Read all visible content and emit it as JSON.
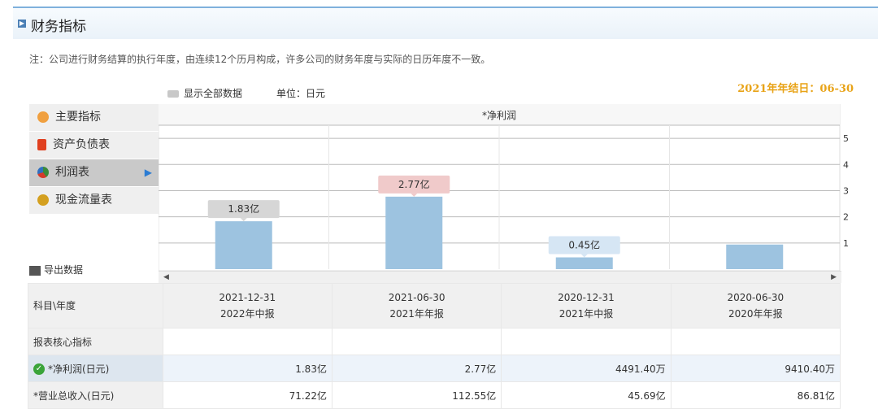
{
  "header": {
    "title": "财务指标"
  },
  "note": "注：公司进行财务结算的执行年度，由连续12个历月构成，许多公司的财务年度与实际的日历年度不一致。",
  "fiscal_year_end": "2021年年结日：06-30",
  "controls": {
    "show_all": "显示全部数据",
    "unit": "单位：日元",
    "export": "导出数据"
  },
  "menu": [
    {
      "label": "主要指标",
      "icon": "flower-icon",
      "color": "#f0a040"
    },
    {
      "label": "资产负债表",
      "icon": "document-icon",
      "color": "#e04020"
    },
    {
      "label": "利润表",
      "icon": "pie-icon",
      "color": "#3a8a3a",
      "active": true
    },
    {
      "label": "现金流量表",
      "icon": "coins-icon",
      "color": "#d4a020"
    }
  ],
  "chart_data": {
    "type": "bar",
    "title": "*净利润",
    "categories": [
      "2021-12-31",
      "2021-06-30",
      "2020-12-31",
      "2020-06-30"
    ],
    "values": [
      1.83,
      2.77,
      0.45,
      0.94
    ],
    "data_labels": [
      "1.83亿",
      "2.77亿",
      "0.45亿",
      ""
    ],
    "label_colors": [
      "#d6d6d6",
      "#f0caca",
      "#d6e6f4",
      ""
    ],
    "y_ticks": [
      "1",
      "2",
      "3",
      "4",
      "5"
    ],
    "ylim": [
      0,
      5.5
    ],
    "grid": true,
    "bar_color": "#9dc3e0"
  },
  "table": {
    "header_label": "科目\\年度",
    "columns": [
      {
        "date": "2021-12-31",
        "report": "2022年中报"
      },
      {
        "date": "2021-06-30",
        "report": "2021年年报"
      },
      {
        "date": "2020-12-31",
        "report": "2021年中报"
      },
      {
        "date": "2020-06-30",
        "report": "2020年年报"
      }
    ],
    "section_label": "报表核心指标",
    "rows": [
      {
        "label": "*净利润(日元)",
        "values": [
          "1.83亿",
          "2.77亿",
          "4491.40万",
          "9410.40万"
        ]
      },
      {
        "label": "*营业总收入(日元)",
        "values": [
          "71.22亿",
          "112.55亿",
          "45.69亿",
          "86.81亿"
        ]
      }
    ]
  }
}
